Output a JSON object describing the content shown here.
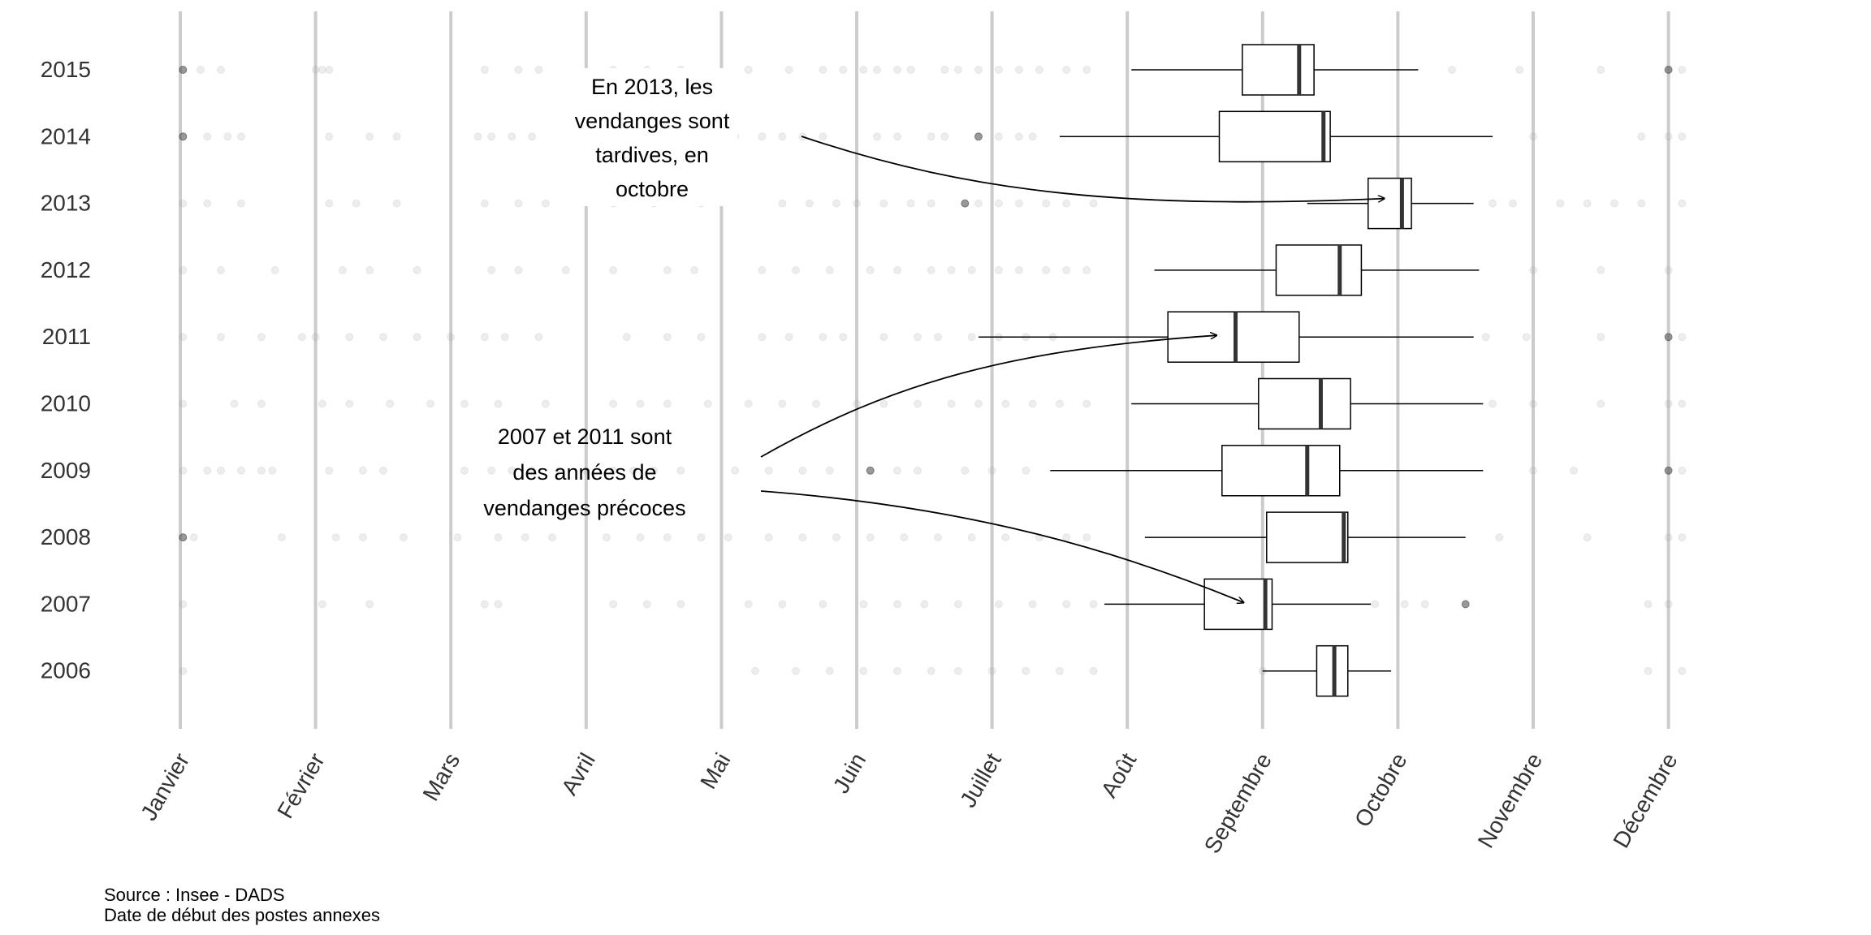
{
  "chart_data": {
    "type": "boxplot",
    "title": "",
    "xlabel": "",
    "ylabel": "",
    "x_axis": {
      "type": "month",
      "ticks": [
        "Janvier",
        "Février",
        "Mars",
        "Avril",
        "Mai",
        "Juin",
        "Juillet",
        "Août",
        "Septembre",
        "Octobre",
        "Novembre",
        "Décembre"
      ],
      "range": [
        0.75,
        12.15
      ],
      "grid": true
    },
    "y_axis": {
      "type": "category",
      "categories": [
        "2015",
        "2014",
        "2013",
        "2012",
        "2011",
        "2010",
        "2009",
        "2008",
        "2007",
        "2006"
      ]
    },
    "boxes": [
      {
        "year": "2015",
        "whisker_low": 8.03,
        "q1": 8.85,
        "median": 9.27,
        "q3": 9.38,
        "whisker_high": 10.15
      },
      {
        "year": "2014",
        "whisker_low": 7.5,
        "q1": 8.68,
        "median": 9.45,
        "q3": 9.5,
        "whisker_high": 10.7
      },
      {
        "year": "2013",
        "whisker_low": 9.33,
        "q1": 9.78,
        "median": 10.03,
        "q3": 10.1,
        "whisker_high": 10.56
      },
      {
        "year": "2012",
        "whisker_low": 8.2,
        "q1": 9.1,
        "median": 9.57,
        "q3": 9.73,
        "whisker_high": 10.6
      },
      {
        "year": "2011",
        "whisker_low": 6.9,
        "q1": 8.3,
        "median": 8.8,
        "q3": 9.27,
        "whisker_high": 10.56
      },
      {
        "year": "2010",
        "whisker_low": 8.03,
        "q1": 8.97,
        "median": 9.43,
        "q3": 9.65,
        "whisker_high": 10.63
      },
      {
        "year": "2009",
        "whisker_low": 7.43,
        "q1": 8.7,
        "median": 9.33,
        "q3": 9.57,
        "whisker_high": 10.63
      },
      {
        "year": "2008",
        "whisker_low": 8.13,
        "q1": 9.03,
        "median": 9.6,
        "q3": 9.63,
        "whisker_high": 10.5
      },
      {
        "year": "2007",
        "whisker_low": 7.83,
        "q1": 8.57,
        "median": 9.02,
        "q3": 9.07,
        "whisker_high": 9.8
      },
      {
        "year": "2006",
        "whisker_low": 9.0,
        "q1": 9.4,
        "median": 9.53,
        "q3": 9.63,
        "whisker_high": 9.95
      }
    ],
    "points": [
      {
        "year": "2015",
        "x": [
          1.02,
          1.15,
          1.3,
          2.0,
          2.05,
          2.1,
          3.25,
          3.5,
          3.65,
          4.2,
          4.45,
          4.7,
          5.2,
          5.5,
          5.75,
          5.9,
          6.05,
          6.15,
          6.3,
          6.4,
          6.65,
          6.75,
          6.9,
          7.05,
          7.2,
          7.35,
          7.55,
          7.7,
          10.4,
          10.9,
          11.5,
          12.0,
          12.1
        ],
        "dark": [
          1.02,
          12.0
        ]
      },
      {
        "year": "2014",
        "x": [
          1.02,
          1.2,
          1.35,
          1.45,
          2.1,
          2.4,
          2.6,
          3.2,
          3.3,
          3.45,
          3.6,
          4.15,
          4.3,
          4.5,
          4.7,
          5.1,
          5.3,
          5.45,
          5.6,
          5.75,
          6.15,
          6.3,
          6.55,
          6.65,
          6.9,
          7.05,
          7.2,
          7.3,
          11.0,
          11.8,
          12.0,
          12.1
        ],
        "dark": [
          1.02,
          6.9
        ]
      },
      {
        "year": "2013",
        "x": [
          1.02,
          1.2,
          1.45,
          2.1,
          2.3,
          2.6,
          3.25,
          3.5,
          3.7,
          4.2,
          4.5,
          4.85,
          5.45,
          5.65,
          5.85,
          6.0,
          6.2,
          6.4,
          6.55,
          6.8,
          6.9,
          7.05,
          7.2,
          7.4,
          7.55,
          7.75,
          10.7,
          10.85,
          11.2,
          11.4,
          11.6,
          11.8,
          12.1
        ],
        "dark": [
          6.8,
          7.35
        ]
      },
      {
        "year": "2012",
        "x": [
          1.02,
          1.3,
          1.7,
          2.2,
          2.4,
          2.75,
          3.3,
          3.5,
          3.85,
          4.2,
          4.6,
          4.8,
          5.3,
          5.55,
          5.8,
          6.1,
          6.3,
          6.55,
          6.7,
          6.85,
          7.05,
          7.2,
          7.4,
          7.55,
          7.7,
          11.0,
          11.5,
          12.0
        ],
        "dark": []
      },
      {
        "year": "2011",
        "x": [
          1.02,
          1.3,
          1.6,
          1.9,
          2.0,
          2.25,
          2.5,
          2.75,
          3.0,
          3.25,
          3.4,
          3.65,
          4.3,
          4.6,
          4.85,
          5.3,
          5.5,
          5.75,
          5.9,
          6.2,
          6.45,
          6.6,
          6.85,
          7.05,
          7.25,
          7.45,
          10.65,
          10.95,
          11.5,
          12.0,
          12.1
        ],
        "dark": [
          12.0
        ]
      },
      {
        "year": "2010",
        "x": [
          1.02,
          1.4,
          1.6,
          2.05,
          2.25,
          2.55,
          2.85,
          3.1,
          3.35,
          3.7,
          4.2,
          4.4,
          4.6,
          4.9,
          5.2,
          5.45,
          5.7,
          6.0,
          6.2,
          6.45,
          6.7,
          6.9,
          7.1,
          7.3,
          7.5,
          7.7,
          10.7,
          11.0,
          11.5,
          12.0,
          12.1
        ],
        "dark": []
      },
      {
        "year": "2009",
        "x": [
          1.02,
          1.2,
          1.3,
          1.45,
          1.6,
          1.68,
          2.1,
          2.35,
          2.5,
          3.1,
          3.3,
          3.45,
          3.6,
          3.8,
          4.0,
          4.2,
          4.35,
          4.5,
          4.7,
          5.1,
          5.35,
          5.6,
          5.8,
          6.1,
          6.3,
          6.45,
          6.8,
          7.0,
          7.25,
          11.0,
          11.3,
          12.0,
          12.1
        ],
        "dark": [
          6.1,
          12.0
        ]
      },
      {
        "year": "2008",
        "x": [
          1.02,
          1.1,
          1.75,
          2.15,
          2.35,
          2.65,
          3.05,
          3.35,
          3.55,
          3.75,
          4.15,
          4.4,
          4.6,
          4.85,
          5.05,
          5.35,
          5.6,
          5.85,
          6.1,
          6.35,
          6.6,
          6.85,
          7.1,
          7.35,
          7.55,
          7.7,
          10.75,
          11.4,
          12.0,
          12.1
        ],
        "dark": [
          1.02,
          9.6
        ]
      },
      {
        "year": "2007",
        "x": [
          1.02,
          2.05,
          2.4,
          3.25,
          3.35,
          4.2,
          4.45,
          4.7,
          5.2,
          5.45,
          5.75,
          6.05,
          6.3,
          6.5,
          6.75,
          7.05,
          7.3,
          7.55,
          7.75,
          9.83,
          10.05,
          10.2,
          10.5,
          11.85,
          12.0
        ],
        "dark": [
          10.5
        ]
      },
      {
        "year": "2006",
        "x": [
          1.02,
          5.25,
          5.55,
          5.8,
          6.05,
          6.3,
          6.55,
          6.75,
          7.0,
          7.25,
          7.5,
          7.75,
          9.0,
          11.85,
          12.1
        ],
        "dark": [
          7.35
        ]
      }
    ],
    "annotations": [
      {
        "lines": [
          "En 2013, les",
          "vendanges sont",
          "tardives, en",
          "octobre"
        ],
        "targets": [
          {
            "year": "2013",
            "x": 9.9
          }
        ]
      },
      {
        "lines": [
          "2007 et 2011 sont",
          "des années de",
          "vendanges précoces"
        ],
        "targets": [
          {
            "year": "2011",
            "x": 8.6
          },
          {
            "year": "2007",
            "x": 8.8
          }
        ]
      }
    ]
  },
  "caption": {
    "source": "Source : Insee - DADS",
    "note": "Date de début des postes annexes"
  }
}
